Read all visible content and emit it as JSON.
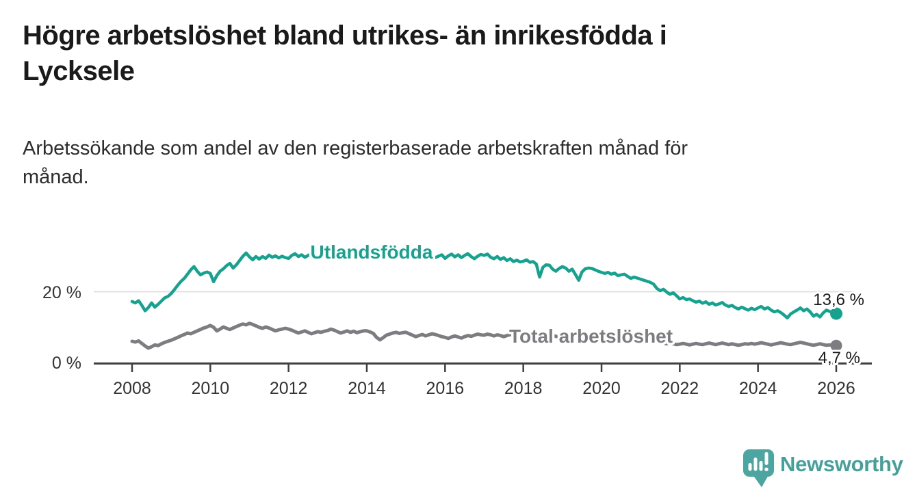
{
  "page": {
    "title": "Högre arbetslöshet bland utrikes- än inrikesfödda i Lycksele",
    "title_line1": "Högre arbetslöshet bland utrikes- än inrikesfödda i",
    "title_line2": "Lycksele",
    "subtitle": "Arbetssökande som andel av den registerbaserade arbetskraften månad för månad.",
    "subtitle_line1": "Arbetssökande som andel av den registerbaserade arbetskraften månad för",
    "subtitle_line2": "månad."
  },
  "branding": {
    "logo_text": "Newsworthy",
    "logo_icon": "speech-bubble-bar-chart-exclamation",
    "logo_color": "#4da5a1"
  },
  "colors": {
    "series_foreign_born": "#17a28f",
    "series_total": "#7d7d81",
    "axis": "#3f3f3f",
    "gridline": "#e0e0e0",
    "tick_text": "#333333",
    "end_label_text": "#1a1a1a",
    "background": "#ffffff"
  },
  "chart_data": {
    "type": "line",
    "frequency": "monthly",
    "x_start": "2008-01",
    "x_end": "2026-01",
    "x_ticks": [
      2008,
      2010,
      2012,
      2014,
      2016,
      2018,
      2020,
      2022,
      2024,
      2026
    ],
    "y_ticks": [
      {
        "value": 0,
        "label": "0 %"
      },
      {
        "value": 20,
        "label": "20 %"
      }
    ],
    "ylim": [
      0,
      33
    ],
    "unit": "%",
    "grid": "horizontal-at-20-only",
    "legend_position": "inline-labels-on-lines",
    "series": [
      {
        "name": "Utlandsfödda",
        "color": "#17a28f",
        "end_value": 13.6,
        "end_label": "13,6 %",
        "values": [
          17.0,
          16.6,
          17.2,
          15.9,
          14.4,
          15.3,
          16.6,
          15.4,
          16.2,
          17.1,
          18.0,
          18.4,
          19.2,
          20.3,
          21.5,
          22.6,
          23.4,
          24.6,
          25.8,
          26.7,
          25.4,
          24.4,
          24.9,
          25.2,
          24.8,
          22.5,
          24.2,
          25.4,
          26.1,
          27.0,
          27.6,
          26.3,
          27.2,
          28.4,
          29.6,
          30.5,
          29.4,
          28.6,
          29.5,
          28.8,
          29.5,
          29.0,
          29.9,
          29.3,
          29.7,
          29.1,
          29.6,
          29.2,
          29.0,
          29.8,
          30.3,
          29.5,
          30.0,
          29.3,
          29.8,
          30.4,
          29.7,
          29.1,
          29.6,
          30.1,
          29.7,
          30.2,
          29.4,
          29.9,
          30.3,
          29.6,
          30.1,
          29.5,
          29.9,
          29.3,
          29.7,
          30.0,
          29.6,
          30.1,
          29.4,
          29.8,
          29.2,
          29.6,
          30.0,
          29.5,
          30.2,
          29.7,
          30.3,
          29.8,
          30.1,
          30.8,
          30.2,
          29.6,
          30.0,
          29.4,
          29.8,
          30.3,
          29.7,
          29.2,
          29.6,
          30.0,
          29.0,
          29.7,
          30.2,
          29.4,
          30.0,
          29.2,
          29.8,
          30.3,
          29.5,
          28.9,
          29.6,
          30.1,
          29.8,
          30.2,
          29.3,
          28.9,
          29.5,
          28.7,
          29.2,
          28.4,
          28.9,
          28.1,
          28.5,
          28.0,
          28.2,
          28.6,
          27.9,
          28.1,
          27.4,
          23.8,
          26.5,
          27.2,
          27.1,
          26.0,
          25.4,
          26.2,
          26.7,
          26.3,
          25.4,
          26.0,
          24.5,
          22.9,
          25.2,
          26.1,
          26.3,
          26.2,
          25.8,
          25.4,
          25.1,
          24.8,
          25.1,
          24.6,
          24.9,
          24.2,
          24.4,
          24.6,
          24.0,
          23.4,
          23.8,
          23.5,
          23.2,
          22.9,
          22.6,
          22.3,
          21.8,
          20.6,
          20.0,
          20.4,
          19.6,
          19.0,
          19.4,
          18.6,
          17.7,
          18.1,
          17.5,
          17.7,
          17.2,
          16.8,
          17.1,
          16.5,
          16.9,
          16.2,
          16.6,
          16.0,
          16.3,
          16.7,
          16.0,
          15.6,
          15.9,
          15.3,
          14.9,
          15.4,
          15.0,
          14.6,
          15.1,
          14.7,
          15.2,
          15.6,
          14.9,
          15.3,
          14.6,
          14.1,
          14.4,
          13.9,
          13.2,
          12.4,
          13.5,
          14.1,
          14.6,
          15.2,
          14.4,
          14.9,
          14.1,
          12.9,
          13.4,
          12.7,
          13.8,
          14.6,
          14.2,
          13.9,
          13.6
        ]
      },
      {
        "name": "Total arbetslöshet",
        "color": "#7d7d81",
        "end_value": 4.7,
        "end_label": "4,7 %",
        "values": [
          5.9,
          5.7,
          6.0,
          5.3,
          4.6,
          4.0,
          4.4,
          4.9,
          4.7,
          5.2,
          5.6,
          5.9,
          6.2,
          6.6,
          7.0,
          7.4,
          7.8,
          8.2,
          8.0,
          8.4,
          8.8,
          9.2,
          9.6,
          9.9,
          10.3,
          9.8,
          8.8,
          9.3,
          9.9,
          9.5,
          9.2,
          9.6,
          10.0,
          10.4,
          10.7,
          10.5,
          10.9,
          10.6,
          10.2,
          9.8,
          9.5,
          9.9,
          9.6,
          9.2,
          8.8,
          9.1,
          9.3,
          9.5,
          9.3,
          9.0,
          8.6,
          8.2,
          8.5,
          8.8,
          8.4,
          8.0,
          8.3,
          8.6,
          8.4,
          8.7,
          8.9,
          9.3,
          9.0,
          8.6,
          8.2,
          8.5,
          8.8,
          8.4,
          8.7,
          8.3,
          8.6,
          8.8,
          8.8,
          8.5,
          8.1,
          7.0,
          6.3,
          6.9,
          7.6,
          7.9,
          8.2,
          8.4,
          8.1,
          8.3,
          8.4,
          8.0,
          7.6,
          7.2,
          7.5,
          7.8,
          7.4,
          7.7,
          8.0,
          7.8,
          7.5,
          7.2,
          7.0,
          6.7,
          7.1,
          7.4,
          7.1,
          6.8,
          7.2,
          7.5,
          7.3,
          7.6,
          7.9,
          7.7,
          7.6,
          7.9,
          7.7,
          7.4,
          7.7,
          7.5,
          7.2,
          7.5,
          7.8,
          7.6,
          7.9,
          7.7,
          7.5,
          7.8,
          7.6,
          7.3,
          7.0,
          7.3,
          7.1,
          7.4,
          7.2,
          7.5,
          7.3,
          7.0,
          6.8,
          7.1,
          6.9,
          6.6,
          6.9,
          6.7,
          6.4,
          6.7,
          6.5,
          6.8,
          6.6,
          6.9,
          7.1,
          7.4,
          7.7,
          8.0,
          7.8,
          7.5,
          7.7,
          7.5,
          7.2,
          7.0,
          6.8,
          6.6,
          6.4,
          6.2,
          6.0,
          5.8,
          5.6,
          5.8,
          5.6,
          5.4,
          5.2,
          5.4,
          5.2,
          5.0,
          5.1,
          5.3,
          5.1,
          4.9,
          5.1,
          5.3,
          5.1,
          5.0,
          5.2,
          5.4,
          5.2,
          5.0,
          5.2,
          5.4,
          5.2,
          5.0,
          5.2,
          5.0,
          4.8,
          5.0,
          5.2,
          5.1,
          5.3,
          5.1,
          5.3,
          5.5,
          5.3,
          5.1,
          4.9,
          5.1,
          5.3,
          5.5,
          5.3,
          5.1,
          5.0,
          5.2,
          5.4,
          5.6,
          5.4,
          5.2,
          5.0,
          4.8,
          5.0,
          5.2,
          5.0,
          4.8,
          4.9,
          4.8,
          4.7
        ]
      }
    ]
  }
}
